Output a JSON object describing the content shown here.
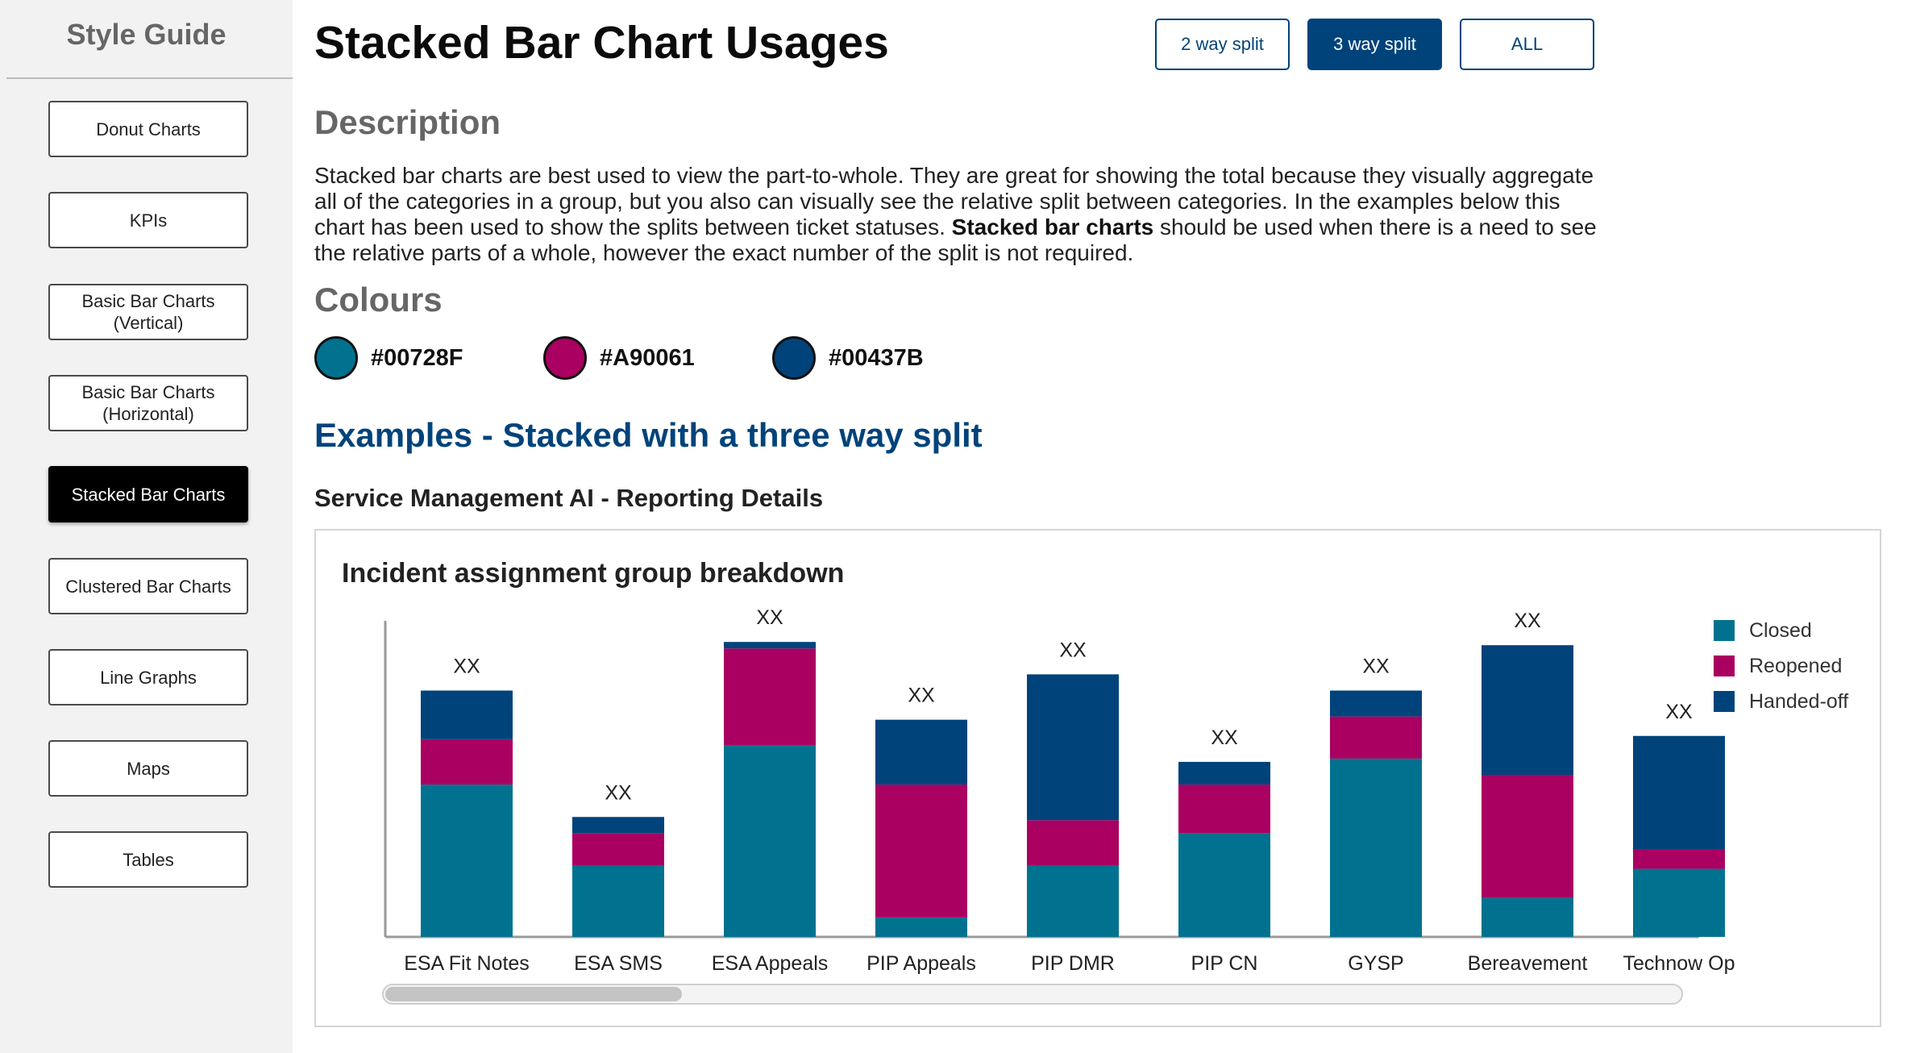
{
  "sidebar": {
    "title": "Style Guide",
    "items": [
      {
        "label": "Donut Charts",
        "active": false
      },
      {
        "label": "KPIs",
        "active": false
      },
      {
        "label": "Basic Bar Charts\n(Vertical)",
        "active": false
      },
      {
        "label": "Basic Bar Charts\n(Horizontal)",
        "active": false
      },
      {
        "label": "Stacked Bar Charts",
        "active": true
      },
      {
        "label": "Clustered Bar Charts",
        "active": false
      },
      {
        "label": "Line Graphs",
        "active": false
      },
      {
        "label": "Maps",
        "active": false
      },
      {
        "label": "Tables",
        "active": false
      }
    ]
  },
  "header": {
    "title": "Stacked Bar Chart Usages",
    "split_buttons": [
      {
        "label": "2 way split",
        "active": false
      },
      {
        "label": "3 way split",
        "active": true
      },
      {
        "label": "ALL",
        "active": false
      }
    ]
  },
  "description": {
    "heading": "Description",
    "text_before_bold": "Stacked bar charts are best used to view the part-to-whole.  They are great for showing the total because they visually aggregate all of the categories in a group, but you also can visually see the relative split between categories. In the examples below this chart has been used to show the splits between ticket statuses. ",
    "bold_text": "Stacked bar charts",
    "text_after_bold": " should be used when there is a need to see the relative parts of a whole, however the exact number of the split is not required."
  },
  "colours": {
    "heading": "Colours",
    "swatches": [
      {
        "label": "#00728F",
        "color": "#00728F"
      },
      {
        "label": "#A90061",
        "color": "#A90061"
      },
      {
        "label": "#00437B",
        "color": "#00437B"
      }
    ]
  },
  "examples": {
    "title": "Examples - Stacked with a three way split",
    "subtitle": "Service Management AI - Reporting Details"
  },
  "chart_data": {
    "type": "bar",
    "stacked": true,
    "title": "Incident assignment group breakdown",
    "xlabel": "",
    "ylabel": "",
    "ylim": [
      0,
      100
    ],
    "grid": false,
    "legend_position": "top-right",
    "categories": [
      "ESA Fit Notes",
      "ESA SMS",
      "ESA Appeals",
      "PIP Appeals",
      "PIP DMR",
      "PIP CN",
      "GYSP",
      "Bereavement",
      "Technow Op"
    ],
    "total_labels": [
      "XX",
      "XX",
      "XX",
      "XX",
      "XX",
      "XX",
      "XX",
      "XX",
      "XX"
    ],
    "series": [
      {
        "name": "Closed",
        "color": "#00728F",
        "values": [
          47,
          22,
          59,
          6,
          22,
          32,
          55,
          12,
          21
        ]
      },
      {
        "name": "Reopened",
        "color": "#A90061",
        "values": [
          14,
          10,
          30,
          41,
          14,
          15,
          13,
          38,
          6
        ]
      },
      {
        "name": "Handed-off",
        "color": "#00437B",
        "values": [
          15,
          5,
          2,
          20,
          45,
          7,
          8,
          40,
          35
        ]
      }
    ]
  }
}
